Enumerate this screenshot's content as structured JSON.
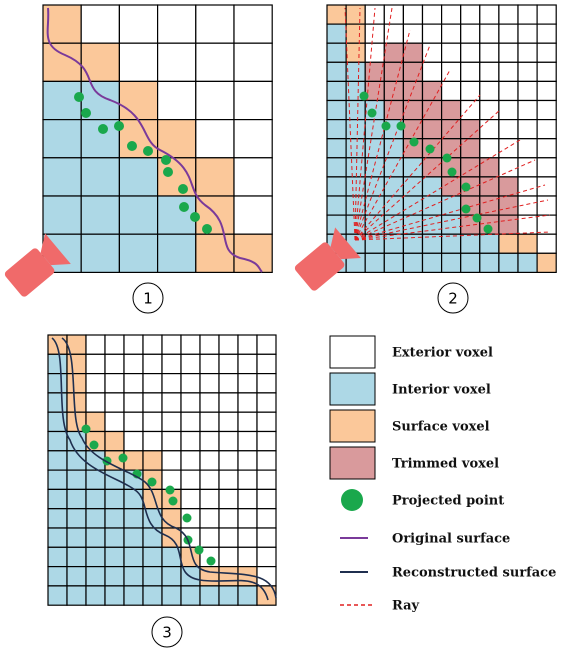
{
  "panels": [
    {
      "label": "1"
    },
    {
      "label": "2"
    },
    {
      "label": "3"
    }
  ],
  "legend": [
    {
      "label": "Exterior voxel"
    },
    {
      "label": "Interior voxel"
    },
    {
      "label": "Surface voxel"
    },
    {
      "label": "Trimmed voxel"
    },
    {
      "label": "Projected point"
    },
    {
      "label": "Original surface"
    },
    {
      "label": "Reconstructed surface"
    },
    {
      "label": "Ray"
    }
  ]
}
